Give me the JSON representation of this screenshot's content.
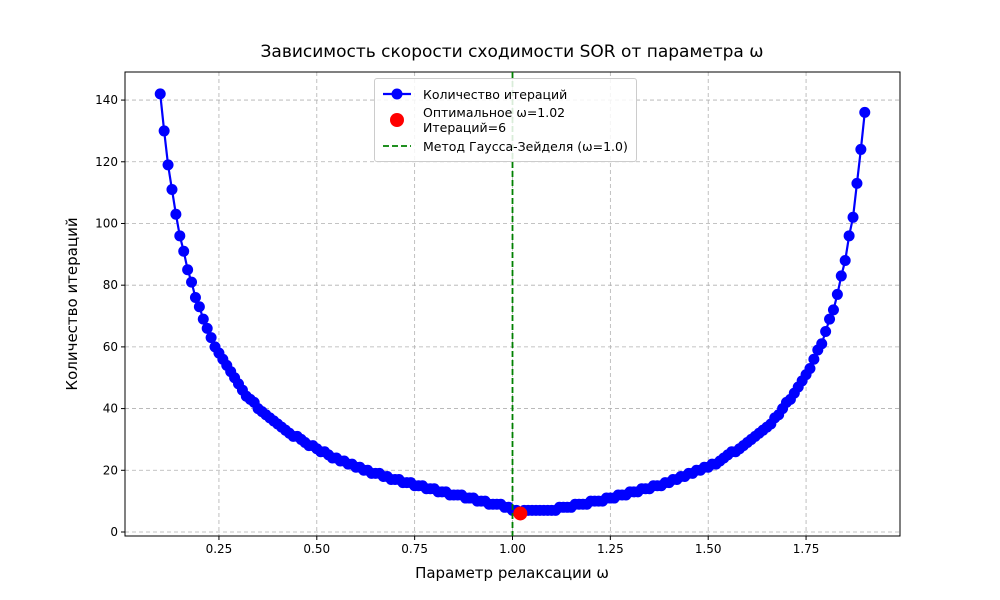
{
  "chart_data": {
    "type": "line",
    "title": "Зависимость скорости сходимости SOR от параметра ω",
    "xlabel": "Параметр релаксации ω",
    "ylabel": "Количество итераций",
    "x": [
      0.1,
      0.11,
      0.12,
      0.13,
      0.14,
      0.15,
      0.16,
      0.17,
      0.18,
      0.19,
      0.2,
      0.21,
      0.22,
      0.23,
      0.24,
      0.25,
      0.26,
      0.27,
      0.28,
      0.29,
      0.3,
      0.31,
      0.32,
      0.33,
      0.34,
      0.35,
      0.36,
      0.37,
      0.38,
      0.39,
      0.4,
      0.41,
      0.42,
      0.43,
      0.44,
      0.45,
      0.46,
      0.47,
      0.48,
      0.49,
      0.5,
      0.51,
      0.52,
      0.53,
      0.54,
      0.55,
      0.56,
      0.57,
      0.58,
      0.59,
      0.6,
      0.61,
      0.62,
      0.63,
      0.64,
      0.65,
      0.66,
      0.67,
      0.68,
      0.69,
      0.7,
      0.71,
      0.72,
      0.73,
      0.74,
      0.75,
      0.76,
      0.77,
      0.78,
      0.79,
      0.8,
      0.81,
      0.82,
      0.83,
      0.84,
      0.85,
      0.86,
      0.87,
      0.88,
      0.89,
      0.9,
      0.91,
      0.92,
      0.93,
      0.94,
      0.95,
      0.96,
      0.97,
      0.98,
      0.99,
      1.0,
      1.01,
      1.02,
      1.03,
      1.04,
      1.05,
      1.06,
      1.07,
      1.08,
      1.09,
      1.1,
      1.11,
      1.12,
      1.13,
      1.14,
      1.15,
      1.16,
      1.17,
      1.18,
      1.19,
      1.2,
      1.21,
      1.22,
      1.23,
      1.24,
      1.25,
      1.26,
      1.27,
      1.28,
      1.29,
      1.3,
      1.31,
      1.32,
      1.33,
      1.34,
      1.35,
      1.36,
      1.37,
      1.38,
      1.39,
      1.4,
      1.41,
      1.42,
      1.43,
      1.44,
      1.45,
      1.46,
      1.47,
      1.48,
      1.49,
      1.5,
      1.51,
      1.52,
      1.53,
      1.54,
      1.55,
      1.56,
      1.57,
      1.58,
      1.59,
      1.6,
      1.61,
      1.62,
      1.63,
      1.64,
      1.65,
      1.66,
      1.67,
      1.68,
      1.69,
      1.7,
      1.71,
      1.72,
      1.73,
      1.74,
      1.75,
      1.76,
      1.77,
      1.78,
      1.79,
      1.8,
      1.81,
      1.82,
      1.83,
      1.84,
      1.85,
      1.86,
      1.87,
      1.88,
      1.89,
      1.9
    ],
    "series": [
      {
        "name": "Количество итераций",
        "color": "#0000ff",
        "values": [
          142,
          130,
          119,
          111,
          103,
          96,
          91,
          85,
          81,
          76,
          73,
          69,
          66,
          63,
          60,
          58,
          56,
          54,
          52,
          50,
          48,
          46,
          44,
          43,
          42,
          40,
          39,
          38,
          37,
          36,
          35,
          34,
          33,
          32,
          31,
          31,
          30,
          29,
          28,
          28,
          27,
          26,
          26,
          25,
          24,
          24,
          23,
          23,
          22,
          22,
          21,
          21,
          20,
          20,
          19,
          19,
          19,
          18,
          18,
          17,
          17,
          17,
          16,
          16,
          16,
          15,
          15,
          15,
          14,
          14,
          14,
          13,
          13,
          13,
          12,
          12,
          12,
          12,
          11,
          11,
          11,
          10,
          10,
          10,
          9,
          9,
          9,
          9,
          8,
          8,
          7,
          7,
          6,
          7,
          7,
          7,
          7,
          7,
          7,
          7,
          7,
          7,
          8,
          8,
          8,
          8,
          9,
          9,
          9,
          9,
          10,
          10,
          10,
          10,
          11,
          11,
          11,
          12,
          12,
          12,
          13,
          13,
          13,
          14,
          14,
          14,
          15,
          15,
          15,
          16,
          16,
          17,
          17,
          18,
          18,
          19,
          19,
          20,
          20,
          21,
          21,
          22,
          22,
          23,
          24,
          25,
          26,
          26,
          27,
          28,
          29,
          30,
          31,
          32,
          33,
          34,
          35,
          37,
          38,
          40,
          42,
          43,
          45,
          47,
          49,
          51,
          53,
          56,
          59,
          61,
          65,
          69,
          72,
          77,
          83,
          88,
          96,
          102,
          113,
          124,
          136
        ]
      }
    ],
    "optimum": {
      "name": "Оптимальное ω=1.02\nИтераций=6",
      "color": "#ff0000",
      "x": 1.02,
      "y": 6
    },
    "vline": {
      "name": "Метод Гаусса-Зейделя (ω=1.0)",
      "color": "#008000",
      "x": 1.0
    },
    "xlim": [
      0.01,
      1.99
    ],
    "ylim": [
      -1.3,
      149.1
    ],
    "xticks": [
      0.25,
      {
        "value": 0.5,
        "label": "0.50"
      },
      0.75,
      {
        "value": 1.0,
        "label": "1.00"
      },
      1.25,
      {
        "value": 1.5,
        "label": "1.50"
      },
      1.75
    ],
    "yticks": [
      0,
      20,
      40,
      60,
      80,
      100,
      120,
      140
    ],
    "grid": true,
    "legend": "upper center"
  }
}
